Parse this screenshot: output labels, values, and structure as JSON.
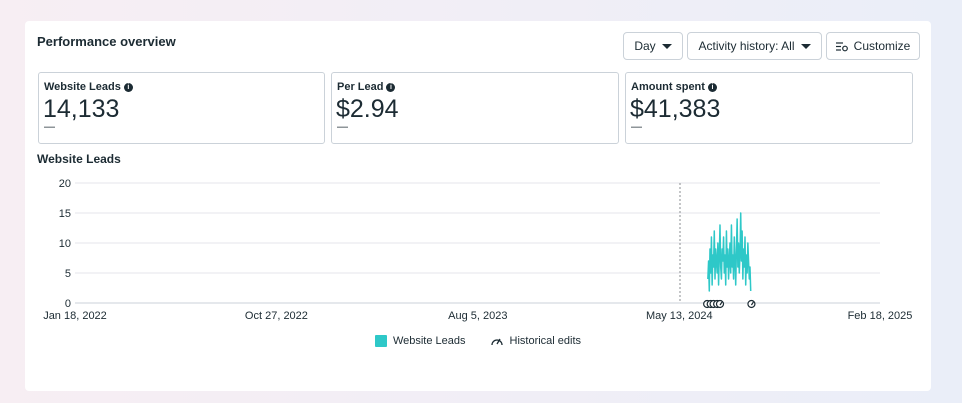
{
  "panel": {
    "title": "Performance overview",
    "day_button": "Day",
    "activity_button": "Activity history: All",
    "customize_button": "Customize"
  },
  "metrics": [
    {
      "label": "Website Leads",
      "value": "14,133",
      "delta": "—"
    },
    {
      "label": "Per Lead",
      "value": "$2.94",
      "delta": "—"
    },
    {
      "label": "Amount spent",
      "value": "$41,383",
      "delta": "—"
    }
  ],
  "chart_title": "Website Leads",
  "legend": {
    "series_label": "Website Leads",
    "edits_label": "Historical edits"
  },
  "colors": {
    "series": "#2ec8c8",
    "grid": "#e4e6eb",
    "marker": "#8a8d91"
  },
  "chart_data": {
    "type": "line",
    "title": "Website Leads",
    "ylim": [
      0,
      20
    ],
    "yticks": [
      0,
      5,
      10,
      15,
      20
    ],
    "xlim": [
      "2022-01-18",
      "2025-02-18"
    ],
    "xtick_labels": [
      "Jan 18, 2022",
      "Oct 27, 2022",
      "Aug 5, 2023",
      "May 13, 2024",
      "Feb 18, 2025"
    ],
    "xtick_dates": [
      "2022-01-18",
      "2022-10-27",
      "2023-08-05",
      "2024-05-13",
      "2025-02-18"
    ],
    "grid": true,
    "legend_position": "bottom",
    "vline_date": "2024-05-14",
    "series": [
      {
        "name": "Website Leads",
        "start_date": "2024-06-22",
        "values": [
          4,
          7,
          2,
          9,
          5,
          11,
          3,
          8,
          6,
          12,
          4,
          9,
          7,
          5,
          10,
          3,
          8,
          13,
          6,
          4,
          9,
          7,
          11,
          5,
          8,
          3,
          12,
          6,
          9,
          4,
          7,
          10,
          5,
          13,
          6,
          8,
          4,
          11,
          7,
          3,
          9,
          14,
          6,
          10,
          5,
          8,
          15,
          7,
          12,
          4,
          9,
          6,
          11,
          3,
          8,
          5,
          10,
          7,
          4,
          6,
          2
        ]
      }
    ],
    "historical_edit_dates": [
      "2024-06-21",
      "2024-06-26",
      "2024-06-30",
      "2024-07-05",
      "2024-07-09",
      "2024-08-22"
    ]
  }
}
